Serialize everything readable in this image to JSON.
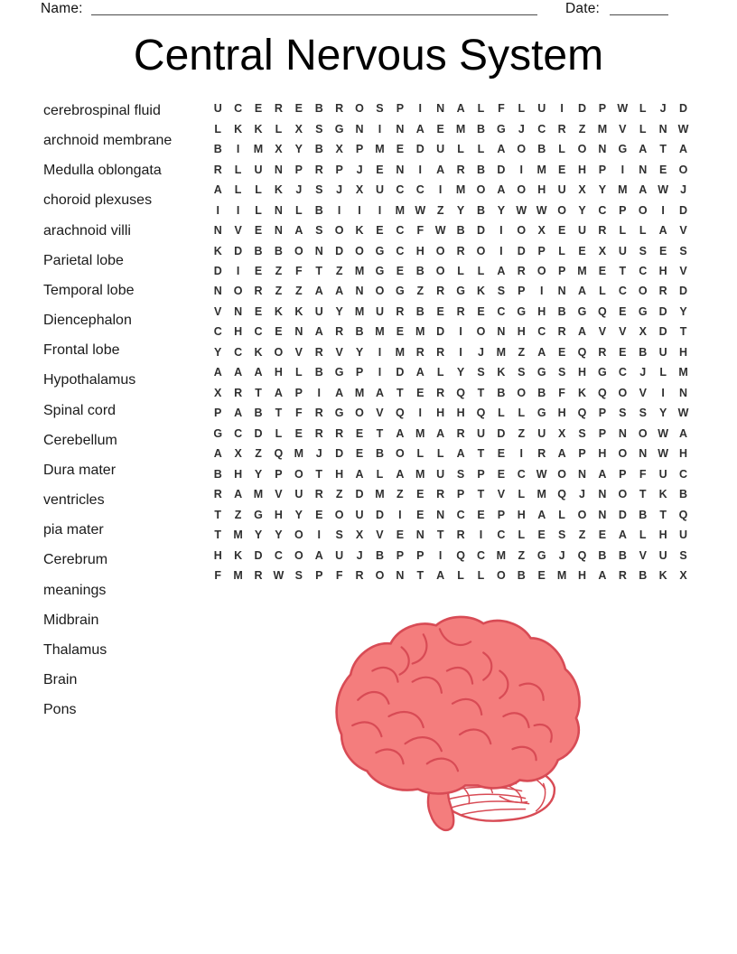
{
  "header": {
    "name_label": "Name:",
    "date_label": "Date:"
  },
  "title": "Central Nervous System",
  "word_list": [
    "cerebrospinal fluid",
    "archnoid membrane",
    "Medulla oblongata",
    "choroid plexuses",
    "arachnoid villi",
    "Parietal lobe",
    "Temporal lobe",
    "Diencephalon",
    "Frontal lobe",
    "Hypothalamus",
    "Spinal cord",
    "Cerebellum",
    "Dura mater",
    "ventricles",
    "pia mater",
    "Cerebrum",
    "meanings",
    "Midbrain",
    "Thalamus",
    "Brain",
    "Pons"
  ],
  "grid": {
    "columns": 24,
    "rows_count": 24,
    "rows": [
      "UCEREBROSPINALFLUIDPWLJD",
      "LKKLXSGNINAEMBGJCRZMVLNW",
      "BIMXYBXPMEDULLAOBLONGATA",
      "RLUNPRPJENIARBDIMEHPINEO",
      "ALLKJSJXUCCIMOAOHUXYMAWJ",
      "IILNLBIIIMWZYBYWWOYCPOID",
      "NVENASOKECFWBDIOXEURLLAV",
      "KDBBONDOGCHOROIDPLEXUSES",
      "DIEZFTZMGEBOLLAROPMETCHV",
      "NORZZAANOGZRGKSPINALCORD",
      "VNEKKUYMURBERECGHBGQEGDY",
      "CHCENARBMEMDIONHCRAVVXDT",
      "YCKOVRVYIMRRIJMZAEQREBUH",
      "AAAHLBGPIDALYSKSGSHGCJLM",
      "XRTAPIAMATERQTBOBFKQOVIN",
      "PABTFRGOVQIHHQLLGHQPSSYW",
      "GCDLERRETAMARUDZUXSPNOWA",
      "AXZQMJDEBOLLATEIRAPHONWH",
      "BHYPOTHALAMUSPECWONAPFUC",
      "RAMVURZDMZERPTVLMQJNOTKB",
      "TZGHYEOUDIENCEPHALONDBTQ",
      "TMYYOISXVENTRICLESZEALHU",
      "HKDCOAUJBPPIQCMZGJQBBVUS",
      "FMRWSPFRONTALLOBEMHARBKX"
    ]
  },
  "brain_illustration": {
    "name": "brain-side-view",
    "fill_color": "#f47d7d",
    "outline_color": "#d84b55",
    "cerebellum_fill": "#ffffff"
  }
}
